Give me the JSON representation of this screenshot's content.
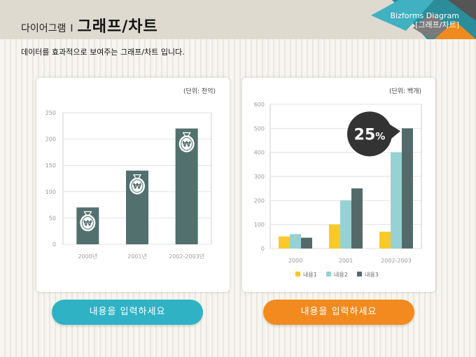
{
  "header": {
    "title_small": "다이어그램",
    "title_sep": "I",
    "title_big": "그래프/차트",
    "brand_line1": "Bizforms Diagram",
    "brand_line2": "[그래프/차트]"
  },
  "subtitle": "데이터를 효과적으로 보여주는 그래프/차트 입니다.",
  "colors": {
    "header_bg": "#dedad0",
    "teal_dark": "#52706d",
    "yellow": "#f9c92b",
    "light_blue": "#97d1d3",
    "dark_gray": "#546a6a",
    "cta_teal": "#2fb3c4",
    "cta_orange": "#f28a1f",
    "callout": "#333333"
  },
  "chart_data": [
    {
      "type": "bar",
      "unit": "(단위: 천억)",
      "categories": [
        "2000년",
        "2001년",
        "2002-2003년"
      ],
      "values": [
        70,
        140,
        220
      ],
      "ylim": [
        0,
        250
      ],
      "yticks": [
        0,
        50,
        100,
        150,
        200,
        250
      ],
      "grid": true,
      "bar_icon": "money-bag-won-icon",
      "icon_glyph": "₩"
    },
    {
      "type": "bar",
      "unit": "(단위: 백개)",
      "categories": [
        "2000",
        "2001",
        "2002-2003"
      ],
      "series": [
        {
          "name": "내용1",
          "values": [
            50,
            100,
            70
          ],
          "color": "#f9c92b"
        },
        {
          "name": "내용2",
          "values": [
            60,
            200,
            400
          ],
          "color": "#97d1d3"
        },
        {
          "name": "내용3",
          "values": [
            45,
            250,
            500
          ],
          "color": "#546a6a"
        }
      ],
      "ylim": [
        0,
        600
      ],
      "yticks": [
        0,
        100,
        200,
        300,
        400,
        500,
        600
      ],
      "grid": true,
      "legend": "bottom",
      "annotation": {
        "value": "25",
        "suffix": "%"
      }
    }
  ],
  "buttons": {
    "left": "내용을 입력하세요",
    "right": "내용을 입력하세요"
  }
}
